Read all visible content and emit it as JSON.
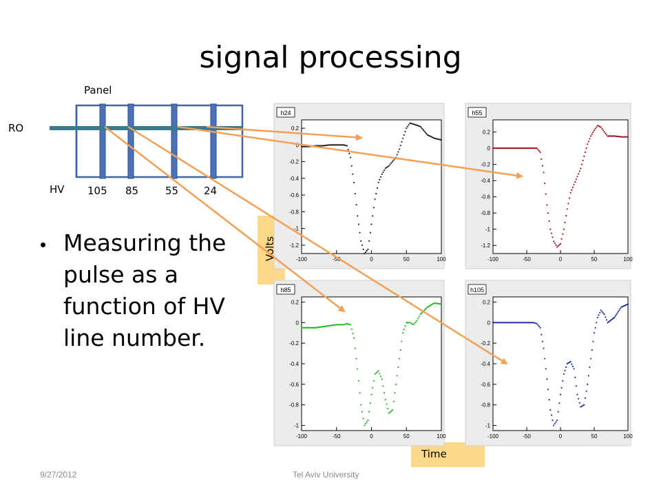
{
  "title": "signal processing",
  "diagram": {
    "panel_label": "Panel",
    "ro_label": "RO",
    "hv_label": "HV",
    "hv_numbers": [
      "105",
      "85",
      "55",
      "24"
    ],
    "colors": {
      "panel_border": "#3b63a8",
      "strip": "#4a72b8",
      "ro_line": "#3b7a8c",
      "arrow": "#f2a054"
    }
  },
  "bullet": {
    "text": "Measuring the pulse as a function of HV line number."
  },
  "axis_boxes": {
    "volts": "Volts",
    "time": "Time",
    "color": "#fcd88a"
  },
  "footer": {
    "date": "9/27/2012",
    "org": "Tel Aviv University"
  },
  "chart_data": [
    {
      "type": "scatter",
      "title": "h24",
      "color": "#222222",
      "xlim": [
        -100,
        100
      ],
      "ylim": [
        -1.3,
        0.3
      ],
      "xticks": [
        -100,
        -50,
        0,
        50,
        100
      ],
      "yticks": [
        0.2,
        0,
        -0.2,
        -0.4,
        -0.6,
        -0.8,
        -1,
        -1.2
      ],
      "x": [
        -100,
        -90,
        -80,
        -70,
        -60,
        -50,
        -40,
        -35,
        -30,
        -25,
        -20,
        -15,
        -10,
        -5,
        0,
        5,
        10,
        15,
        20,
        25,
        30,
        35,
        40,
        45,
        50,
        55,
        60,
        70,
        80,
        90,
        100
      ],
      "y": [
        -0.02,
        -0.02,
        -0.01,
        -0.01,
        0,
        0,
        0,
        -0.01,
        -0.15,
        -0.45,
        -0.85,
        -1.15,
        -1.3,
        -1.25,
        -0.95,
        -0.65,
        -0.45,
        -0.35,
        -0.28,
        -0.25,
        -0.2,
        -0.15,
        -0.05,
        0.08,
        0.2,
        0.26,
        0.25,
        0.22,
        0.12,
        0.08,
        0.06
      ]
    },
    {
      "type": "scatter",
      "title": "h55",
      "color": "#a01515",
      "xlim": [
        -100,
        100
      ],
      "ylim": [
        -1.3,
        0.35
      ],
      "xticks": [
        -100,
        -50,
        0,
        50,
        100
      ],
      "yticks": [
        0.2,
        0,
        -0.2,
        -0.4,
        -0.6,
        -0.8,
        -1,
        -1.2
      ],
      "x": [
        -100,
        -90,
        -80,
        -70,
        -60,
        -50,
        -40,
        -35,
        -30,
        -25,
        -20,
        -15,
        -10,
        -5,
        0,
        5,
        10,
        15,
        20,
        25,
        30,
        35,
        40,
        45,
        50,
        55,
        60,
        65,
        70,
        80,
        90,
        100
      ],
      "y": [
        0,
        0,
        0,
        0,
        0,
        0,
        0,
        0,
        -0.05,
        -0.3,
        -0.7,
        -1.0,
        -1.15,
        -1.22,
        -1.18,
        -1.0,
        -0.75,
        -0.55,
        -0.45,
        -0.35,
        -0.25,
        -0.1,
        0.05,
        0.15,
        0.22,
        0.28,
        0.26,
        0.2,
        0.15,
        0.15,
        0.14,
        0.14
      ]
    },
    {
      "type": "scatter",
      "title": "h85",
      "color": "#1fb51f",
      "xlim": [
        -100,
        100
      ],
      "ylim": [
        -1.05,
        0.25
      ],
      "xticks": [
        -100,
        -50,
        0,
        50,
        100
      ],
      "yticks": [
        0.2,
        0,
        -0.2,
        -0.4,
        -0.6,
        -0.8,
        -1
      ],
      "x": [
        -100,
        -90,
        -80,
        -70,
        -60,
        -50,
        -40,
        -35,
        -30,
        -25,
        -20,
        -15,
        -10,
        -5,
        0,
        5,
        10,
        15,
        20,
        25,
        30,
        35,
        40,
        45,
        50,
        55,
        60,
        65,
        70,
        80,
        90,
        100
      ],
      "y": [
        -0.05,
        -0.05,
        -0.05,
        -0.04,
        -0.03,
        -0.02,
        -0.02,
        -0.01,
        -0.02,
        -0.15,
        -0.45,
        -0.8,
        -1.0,
        -0.95,
        -0.7,
        -0.5,
        -0.47,
        -0.55,
        -0.75,
        -0.88,
        -0.85,
        -0.6,
        -0.35,
        -0.1,
        0.0,
        0.0,
        -0.02,
        0.02,
        0.08,
        0.15,
        0.19,
        0.18
      ]
    },
    {
      "type": "scatter",
      "title": "h105",
      "color": "#1a2fa0",
      "xlim": [
        -100,
        100
      ],
      "ylim": [
        -1.05,
        0.25
      ],
      "xticks": [
        -100,
        -50,
        0,
        50,
        100
      ],
      "yticks": [
        0.2,
        0,
        -0.2,
        -0.4,
        -0.6,
        -0.8,
        -1
      ],
      "x": [
        -100,
        -90,
        -80,
        -70,
        -60,
        -50,
        -40,
        -35,
        -30,
        -25,
        -20,
        -15,
        -10,
        -5,
        0,
        5,
        10,
        15,
        20,
        25,
        30,
        35,
        40,
        45,
        50,
        55,
        60,
        65,
        70,
        80,
        90,
        100
      ],
      "y": [
        0.0,
        0.0,
        0.0,
        0.0,
        0.0,
        0.0,
        0.0,
        -0.01,
        -0.05,
        -0.25,
        -0.55,
        -0.85,
        -1.0,
        -0.95,
        -0.7,
        -0.5,
        -0.4,
        -0.38,
        -0.45,
        -0.7,
        -0.82,
        -0.8,
        -0.6,
        -0.35,
        -0.1,
        0.05,
        0.12,
        0.08,
        0.0,
        0.05,
        0.15,
        0.18
      ]
    }
  ]
}
